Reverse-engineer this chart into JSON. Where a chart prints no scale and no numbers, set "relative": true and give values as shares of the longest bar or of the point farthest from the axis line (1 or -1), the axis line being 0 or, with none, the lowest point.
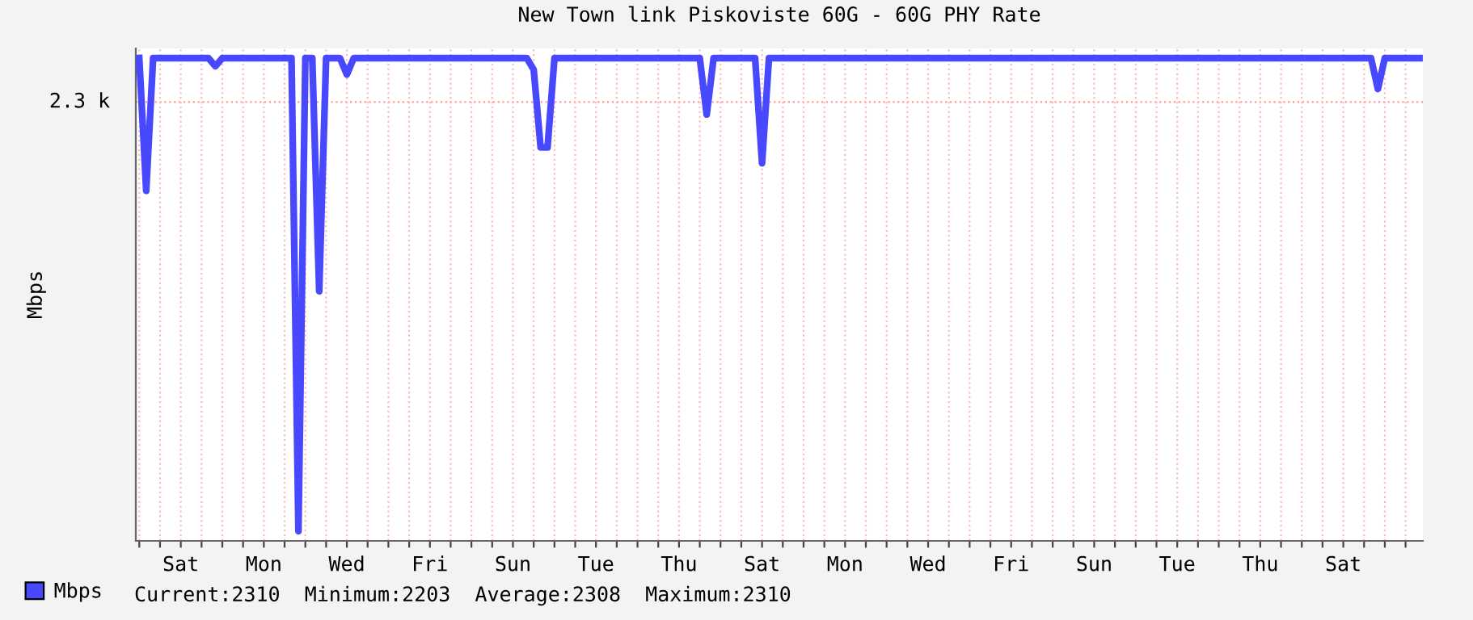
{
  "chart_data": {
    "type": "line",
    "title": "New Town link Piskoviste 60G - 60G PHY Rate",
    "ylabel": "Mbps",
    "relative": true,
    "categories": [
      null,
      null,
      null,
      null,
      null,
      null,
      "Sat",
      null,
      null,
      null,
      null,
      null,
      null,
      null,
      null,
      null,
      null,
      null,
      "Mon",
      null,
      null,
      null,
      null,
      null,
      null,
      null,
      null,
      null,
      null,
      null,
      "Wed",
      null,
      null,
      null,
      null,
      null,
      null,
      null,
      null,
      null,
      null,
      null,
      "Fri",
      null,
      null,
      null,
      null,
      null,
      null,
      null,
      null,
      null,
      null,
      null,
      "Sun",
      null,
      null,
      null,
      null,
      null,
      null,
      null,
      null,
      null,
      null,
      null,
      "Tue",
      null,
      null,
      null,
      null,
      null,
      null,
      null,
      null,
      null,
      null,
      null,
      "Thu",
      null,
      null,
      null,
      null,
      null,
      null,
      null,
      null,
      null,
      null,
      null,
      "Sat",
      null,
      null,
      null,
      null,
      null,
      null,
      null,
      null,
      null,
      null,
      null,
      "Mon",
      null,
      null,
      null,
      null,
      null,
      null,
      null,
      null,
      null,
      null,
      null,
      "Wed",
      null,
      null,
      null,
      null,
      null,
      null,
      null,
      null,
      null,
      null,
      null,
      "Fri",
      null,
      null,
      null,
      null,
      null,
      null,
      null,
      null,
      null,
      null,
      null,
      "Sun",
      null,
      null,
      null,
      null,
      null,
      null,
      null,
      null,
      null,
      null,
      null,
      "Tue",
      null,
      null,
      null,
      null,
      null,
      null,
      null,
      null,
      null,
      null,
      null,
      "Thu",
      null,
      null,
      null,
      null,
      null,
      null,
      null,
      null,
      null,
      null,
      null,
      "Sat",
      null,
      null,
      null,
      null,
      null,
      null,
      null,
      null,
      null,
      null,
      null
    ],
    "series": [
      {
        "name": "Mbps",
        "color": "#4848ff",
        "values": [
          1,
          0.725,
          1,
          1,
          1,
          1,
          1,
          1,
          1,
          1,
          1,
          0.983,
          1,
          1,
          1,
          1,
          1,
          1,
          1,
          1,
          1,
          1,
          1,
          0.02,
          1,
          1,
          0.517,
          1,
          1,
          1,
          0.966,
          1,
          1,
          1,
          1,
          1,
          1,
          1,
          1,
          1,
          1,
          1,
          1,
          1,
          1,
          1,
          1,
          1,
          1,
          1,
          1,
          1,
          1,
          1,
          1,
          1,
          1,
          0.976,
          0.815,
          0.815,
          1,
          1,
          1,
          1,
          1,
          1,
          1,
          1,
          1,
          1,
          1,
          1,
          1,
          1,
          1,
          1,
          1,
          1,
          1,
          1,
          1,
          1,
          0.883,
          1,
          1,
          1,
          1,
          1,
          1,
          1,
          0.782,
          1,
          1,
          1,
          1,
          1,
          1,
          1,
          1,
          1,
          1,
          1,
          1,
          1,
          1,
          1,
          1,
          1,
          1,
          1,
          1,
          1,
          1,
          1,
          1,
          1,
          1,
          1,
          1,
          1,
          1,
          1,
          1,
          1,
          1,
          1,
          1,
          1,
          1,
          1,
          1,
          1,
          1,
          1,
          1,
          1,
          1,
          1,
          1,
          1,
          1,
          1,
          1,
          1,
          1,
          1,
          1,
          1,
          1,
          1,
          1,
          1,
          1,
          1,
          1,
          1,
          1,
          1,
          1,
          1,
          1,
          1,
          1,
          1,
          1,
          1,
          1,
          1,
          1,
          1,
          1,
          1,
          1,
          1,
          1,
          1,
          1,
          1,
          1,
          0.936,
          1,
          1,
          1,
          1,
          1,
          1
        ]
      }
    ],
    "ref_lines": [
      {
        "axis": "y",
        "value": 0.909,
        "label": "2.3 k",
        "color": "#ff9999",
        "line_style": "dotted"
      }
    ],
    "grid": "x",
    "legend": "bottom",
    "line_style": "solid",
    "marker": "none",
    "annotations": [
      "Current:2310  Minimum:2203  Average:2308  Maximum:2310"
    ]
  }
}
